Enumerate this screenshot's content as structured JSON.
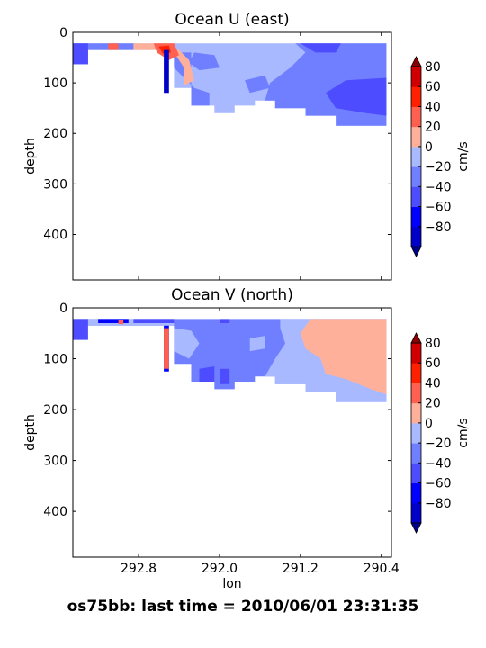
{
  "footer_title": "os75bb: last time = 2010/06/01 23:31:35",
  "colormap": {
    "levels": [
      -80,
      -60,
      -40,
      -20,
      0,
      20,
      40,
      60,
      80
    ],
    "colors": [
      "#0000c8",
      "#0000ff",
      "#4d4dff",
      "#6f7fff",
      "#a9b9ff",
      "#ffb09a",
      "#ff6050",
      "#ff2000",
      "#d00000"
    ],
    "extend_low_color": "#00008a",
    "extend_high_color": "#8b0000",
    "tick_labels": [
      "80",
      "60",
      "40",
      "20",
      "0",
      "−20",
      "−40",
      "−60",
      "−80"
    ],
    "label": "cm/s"
  },
  "chart_data": [
    {
      "type": "heatmap",
      "title": "Ocean U (east)",
      "xlabel": "",
      "ylabel": "depth",
      "colorbar_label": "cm/s",
      "xlim": [
        293.45,
        290.3
      ],
      "ylim": [
        490,
        0
      ],
      "x_ticks": [
        292.8,
        292.0,
        291.2,
        290.4
      ],
      "x_tick_labels": [],
      "y_ticks": [
        0,
        100,
        200,
        300,
        400
      ],
      "y_tick_labels": [
        "0",
        "100",
        "200",
        "300",
        "400"
      ],
      "regions": [
        {
          "v": 10,
          "points": [
            [
              293.45,
              22
            ],
            [
              290.35,
              22
            ],
            [
              290.35,
              185
            ],
            [
              290.85,
              185
            ],
            [
              290.85,
              165
            ],
            [
              291.15,
              165
            ],
            [
              291.15,
              150
            ],
            [
              291.45,
              150
            ],
            [
              291.45,
              135
            ],
            [
              291.65,
              135
            ],
            [
              291.65,
              145
            ],
            [
              291.85,
              145
            ],
            [
              291.85,
              160
            ],
            [
              292.05,
              160
            ],
            [
              292.05,
              145
            ],
            [
              292.28,
              145
            ],
            [
              292.28,
              110
            ],
            [
              292.45,
              110
            ],
            [
              292.45,
              35
            ],
            [
              293.45,
              35
            ]
          ]
        },
        {
          "v": -10,
          "points": [
            [
              291.25,
              22
            ],
            [
              290.35,
              22
            ],
            [
              290.35,
              185
            ],
            [
              290.85,
              185
            ],
            [
              290.85,
              165
            ],
            [
              291.15,
              165
            ],
            [
              291.15,
              150
            ],
            [
              291.45,
              150
            ],
            [
              291.45,
              135
            ],
            [
              291.55,
              135
            ],
            [
              291.5,
              100
            ],
            [
              291.3,
              70
            ],
            [
              291.15,
              40
            ]
          ]
        },
        {
          "v": -10,
          "points": [
            [
              293.45,
              22
            ],
            [
              292.85,
              22
            ],
            [
              292.85,
              35
            ],
            [
              293.3,
              35
            ],
            [
              293.3,
              63
            ],
            [
              293.45,
              63
            ]
          ]
        },
        {
          "v": -10,
          "points": [
            [
              292.45,
              40
            ],
            [
              292.28,
              40
            ],
            [
              292.28,
              145
            ],
            [
              292.1,
              145
            ],
            [
              292.1,
              120
            ],
            [
              292.25,
              110
            ],
            [
              292.35,
              90
            ],
            [
              292.45,
              70
            ]
          ]
        },
        {
          "v": -10,
          "points": [
            [
              292.25,
              40
            ],
            [
              292.05,
              45
            ],
            [
              292.0,
              70
            ],
            [
              292.2,
              75
            ],
            [
              292.3,
              60
            ]
          ]
        },
        {
          "v": -10,
          "points": [
            [
              291.75,
              95
            ],
            [
              291.55,
              85
            ],
            [
              291.5,
              110
            ],
            [
              291.7,
              120
            ]
          ]
        },
        {
          "v": -30,
          "points": [
            [
              290.75,
              95
            ],
            [
              290.35,
              90
            ],
            [
              290.35,
              165
            ],
            [
              290.55,
              160
            ],
            [
              290.85,
              150
            ],
            [
              290.95,
              120
            ]
          ]
        },
        {
          "v": -30,
          "points": [
            [
              291.2,
              22
            ],
            [
              290.8,
              22
            ],
            [
              290.85,
              40
            ],
            [
              291.05,
              40
            ]
          ]
        },
        {
          "v": -30,
          "points": [
            [
              293.45,
              22
            ],
            [
              293.3,
              22
            ],
            [
              293.3,
              63
            ],
            [
              293.45,
              63
            ]
          ]
        },
        {
          "v": 30,
          "points": [
            [
              292.85,
              22
            ],
            [
              292.45,
              22
            ],
            [
              292.45,
              40
            ],
            [
              292.35,
              70
            ],
            [
              292.35,
              105
            ],
            [
              292.25,
              95
            ],
            [
              292.3,
              55
            ],
            [
              292.4,
              35
            ],
            [
              292.85,
              35
            ]
          ]
        },
        {
          "v": 50,
          "points": [
            [
              292.65,
              22
            ],
            [
              292.45,
              22
            ],
            [
              292.4,
              45
            ],
            [
              292.5,
              55
            ],
            [
              292.62,
              40
            ]
          ]
        },
        {
          "v": 50,
          "points": [
            [
              293.1,
              22
            ],
            [
              293.0,
              22
            ],
            [
              293.0,
              35
            ],
            [
              293.1,
              35
            ]
          ]
        },
        {
          "v": 70,
          "points": [
            [
              292.6,
              28
            ],
            [
              292.5,
              26
            ],
            [
              292.48,
              40
            ],
            [
              292.56,
              42
            ]
          ]
        },
        {
          "v": -70,
          "points": [
            [
              292.55,
              35
            ],
            [
              292.5,
              35
            ],
            [
              292.5,
              120
            ],
            [
              292.55,
              120
            ]
          ]
        }
      ]
    },
    {
      "type": "heatmap",
      "title": "Ocean V (north)",
      "xlabel": "lon",
      "ylabel": "depth",
      "colorbar_label": "cm/s",
      "xlim": [
        293.45,
        290.3
      ],
      "ylim": [
        490,
        0
      ],
      "x_ticks": [
        292.8,
        292.0,
        291.2,
        290.4
      ],
      "x_tick_labels": [
        "292.8",
        "292.0",
        "291.2",
        "290.4"
      ],
      "y_ticks": [
        0,
        100,
        200,
        300,
        400
      ],
      "y_tick_labels": [
        "0",
        "100",
        "200",
        "300",
        "400"
      ],
      "regions": [
        {
          "v": -10,
          "points": [
            [
              293.45,
              22
            ],
            [
              290.35,
              22
            ],
            [
              290.35,
              185
            ],
            [
              290.85,
              185
            ],
            [
              290.85,
              165
            ],
            [
              291.15,
              165
            ],
            [
              291.15,
              150
            ],
            [
              291.45,
              150
            ],
            [
              291.45,
              135
            ],
            [
              291.65,
              135
            ],
            [
              291.65,
              145
            ],
            [
              291.85,
              145
            ],
            [
              291.85,
              160
            ],
            [
              292.05,
              160
            ],
            [
              292.05,
              145
            ],
            [
              292.28,
              145
            ],
            [
              292.28,
              110
            ],
            [
              292.45,
              110
            ],
            [
              292.45,
              35
            ],
            [
              293.45,
              35
            ]
          ]
        },
        {
          "v": 10,
          "points": [
            [
              293.45,
              22
            ],
            [
              292.45,
              22
            ],
            [
              292.45,
              35
            ],
            [
              293.45,
              35
            ]
          ]
        },
        {
          "v": 10,
          "points": [
            [
              291.4,
              22
            ],
            [
              290.35,
              22
            ],
            [
              290.35,
              185
            ],
            [
              290.85,
              185
            ],
            [
              290.85,
              165
            ],
            [
              291.15,
              165
            ],
            [
              291.15,
              150
            ],
            [
              291.45,
              150
            ],
            [
              291.45,
              135
            ],
            [
              291.55,
              135
            ],
            [
              291.45,
              100
            ],
            [
              291.35,
              70
            ],
            [
              291.4,
              40
            ]
          ]
        },
        {
          "v": 10,
          "points": [
            [
              292.45,
              40
            ],
            [
              292.28,
              45
            ],
            [
              292.2,
              70
            ],
            [
              292.3,
              100
            ],
            [
              292.45,
              85
            ]
          ]
        },
        {
          "v": 10,
          "points": [
            [
              291.7,
              60
            ],
            [
              291.55,
              55
            ],
            [
              291.55,
              80
            ],
            [
              291.7,
              85
            ]
          ]
        },
        {
          "v": 30,
          "points": [
            [
              291.1,
              22
            ],
            [
              290.35,
              22
            ],
            [
              290.35,
              170
            ],
            [
              290.5,
              160
            ],
            [
              290.75,
              140
            ],
            [
              290.95,
              130
            ],
            [
              291.0,
              100
            ],
            [
              291.15,
              80
            ],
            [
              291.2,
              50
            ]
          ]
        },
        {
          "v": -30,
          "points": [
            [
              293.45,
              22
            ],
            [
              293.3,
              22
            ],
            [
              293.3,
              63
            ],
            [
              293.45,
              63
            ]
          ]
        },
        {
          "v": -30,
          "points": [
            [
              292.85,
              22
            ],
            [
              292.45,
              22
            ],
            [
              292.45,
              30
            ],
            [
              292.85,
              30
            ]
          ]
        },
        {
          "v": -30,
          "points": [
            [
              292.0,
              120
            ],
            [
              291.9,
              120
            ],
            [
              291.9,
              150
            ],
            [
              292.0,
              150
            ]
          ]
        },
        {
          "v": -30,
          "points": [
            [
              292.2,
              120
            ],
            [
              292.05,
              115
            ],
            [
              292.05,
              145
            ],
            [
              292.2,
              145
            ]
          ]
        },
        {
          "v": -30,
          "points": [
            [
              292.0,
              22
            ],
            [
              291.9,
              22
            ],
            [
              291.9,
              30
            ],
            [
              292.0,
              30
            ]
          ]
        },
        {
          "v": -50,
          "points": [
            [
              292.55,
              35
            ],
            [
              292.5,
              35
            ],
            [
              292.5,
              125
            ],
            [
              292.55,
              125
            ]
          ]
        },
        {
          "v": 50,
          "points": [
            [
              292.55,
              40
            ],
            [
              292.5,
              40
            ],
            [
              292.5,
              120
            ],
            [
              292.55,
              120
            ]
          ]
        },
        {
          "v": -50,
          "points": [
            [
              293.2,
              22
            ],
            [
              292.9,
              22
            ],
            [
              292.9,
              30
            ],
            [
              293.2,
              30
            ]
          ]
        },
        {
          "v": 50,
          "points": [
            [
              293.0,
              24
            ],
            [
              292.95,
              24
            ],
            [
              292.95,
              32
            ],
            [
              293.0,
              32
            ]
          ]
        }
      ]
    }
  ]
}
